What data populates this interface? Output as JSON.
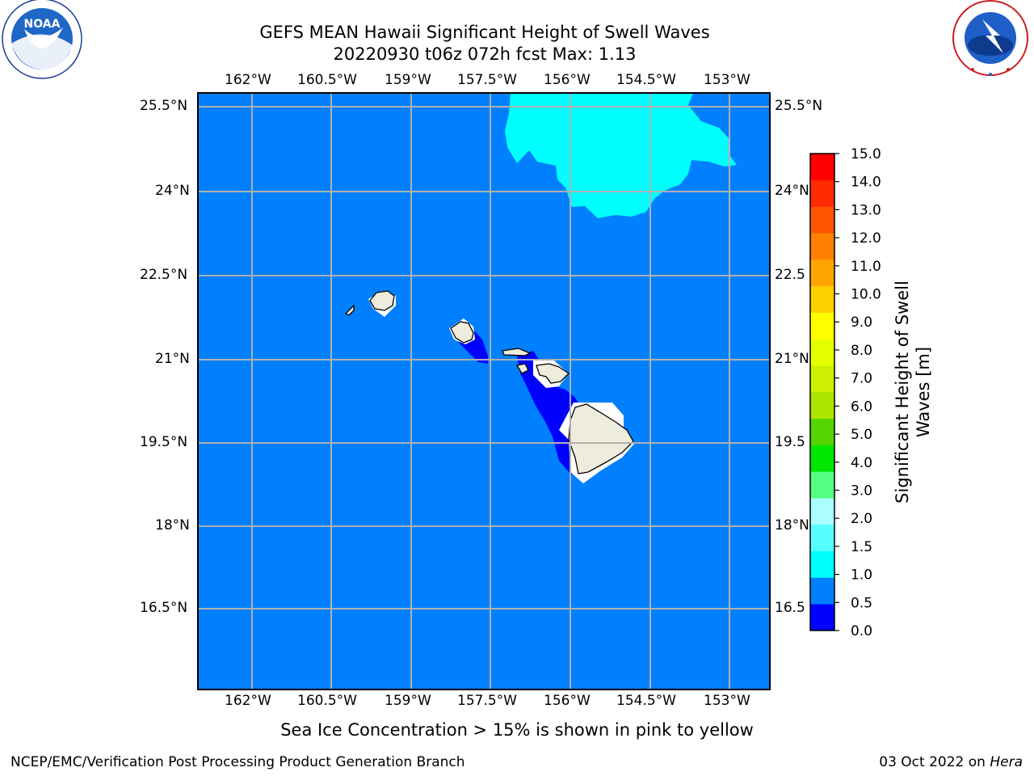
{
  "title": {
    "line1": "GEFS MEAN Hawaii Significant Height of Swell Waves",
    "line2": "20220930 t06z 072h fcst   Max: 1.13"
  },
  "logos": {
    "left": {
      "name": "noaa-logo",
      "text": "NOAA",
      "ring_text": "NATIONAL OCEANIC AND ATMOSPHERIC ADMINISTRATION · U.S. DEPARTMENT OF COMMERCE"
    },
    "right": {
      "name": "nws-logo",
      "ring_text": "NATIONAL WEATHER SERVICE"
    }
  },
  "map": {
    "lon_ticks": [
      "162°W",
      "160.5°W",
      "159°W",
      "157.5°W",
      "156°W",
      "154.5°W",
      "153°W"
    ],
    "lat_ticks": [
      "25.5°N",
      "24°N",
      "22.5°N",
      "21°N",
      "19.5°N",
      "18°N",
      "16.5°N"
    ],
    "lat_ticks_right": [
      "25.5°N",
      "24°N",
      "22.5",
      "21°N",
      "19.5",
      "18°N",
      "16.5"
    ],
    "ocean_color": "#0080ff",
    "land_color": "#eeecdc",
    "grid_color": "#b0b0b0"
  },
  "colorbar": {
    "label": "Significant Height of Swell Waves [m]",
    "tick_labels": [
      "0.0",
      "0.5",
      "1.0",
      "1.5",
      "2.0",
      "3.0",
      "4.0",
      "5.0",
      "6.0",
      "7.0",
      "8.0",
      "9.0",
      "10.0",
      "11.0",
      "12.0",
      "13.0",
      "14.0",
      "15.0"
    ],
    "colors": [
      "#0000ff",
      "#0080ff",
      "#00ffff",
      "#55ffff",
      "#aaffff",
      "#55ff80",
      "#00e600",
      "#55d400",
      "#aae600",
      "#ccf000",
      "#e6ff00",
      "#ffff00",
      "#ffd000",
      "#ffa500",
      "#ff8000",
      "#ff5500",
      "#ff2a00",
      "#ff0000"
    ]
  },
  "caption": "Sea Ice Concentration > 15% is shown in pink to yellow",
  "footer": {
    "left": "NCEP/EMC/Verification Post Processing Product Generation Branch",
    "right_prefix": "03 Oct 2022 on ",
    "right_host": "Hera"
  }
}
